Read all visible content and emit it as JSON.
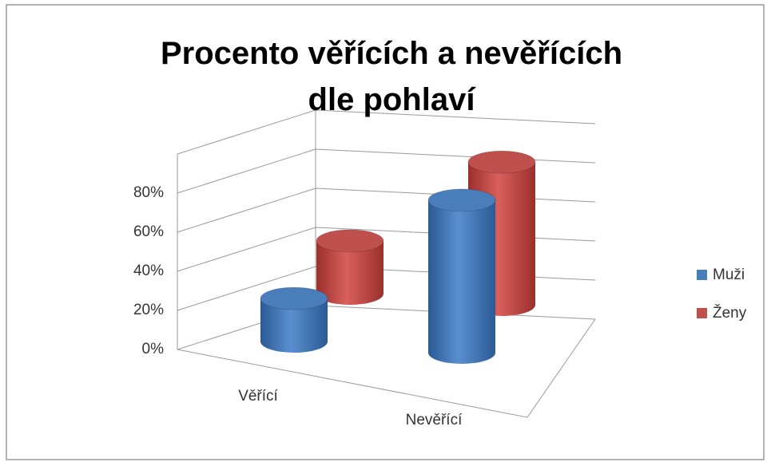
{
  "chart_data": {
    "type": "bar3d",
    "title": "Procento věřících a nevěřících dle pohlaví",
    "categories": [
      "Věřící",
      "Nevěřící"
    ],
    "series": [
      {
        "name": "Muži",
        "color": "#4a7ebb",
        "values": [
          22,
          78
        ]
      },
      {
        "name": "Ženy",
        "color": "#c0504d",
        "values": [
          27,
          73
        ]
      }
    ],
    "ylim": [
      0,
      100
    ],
    "yticks": [
      {
        "value": 0,
        "label": "0%"
      },
      {
        "value": 20,
        "label": "20%"
      },
      {
        "value": 40,
        "label": "40%"
      },
      {
        "value": 60,
        "label": "60%"
      },
      {
        "value": 80,
        "label": "80%"
      }
    ],
    "grid": true,
    "legend": "right"
  }
}
